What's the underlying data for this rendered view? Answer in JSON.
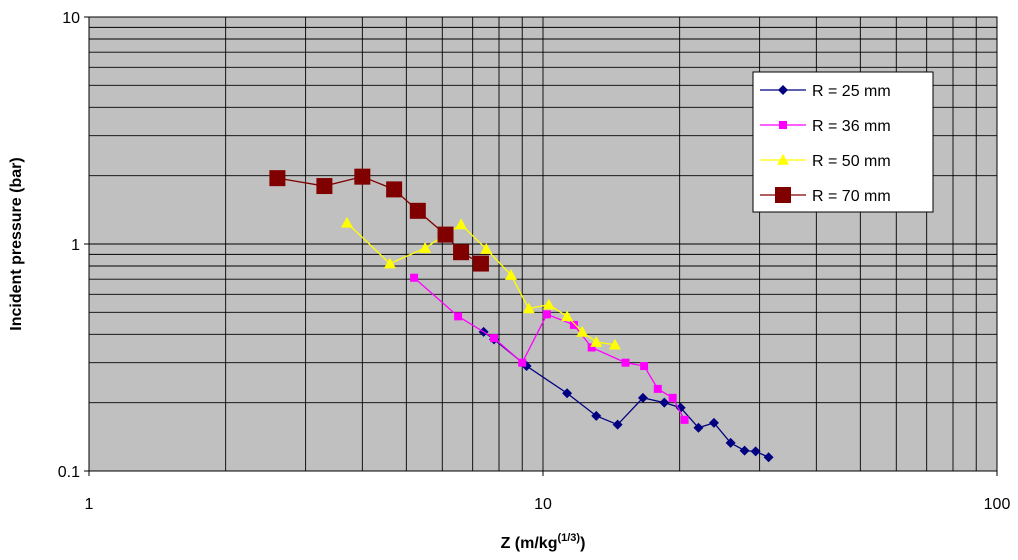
{
  "chart_data": {
    "type": "scatter",
    "title": "",
    "xlabel": "Z (m/kg",
    "xlabel_sup": "(1/3)",
    "xlabel_suffix": ")",
    "ylabel": "Incident pressure (bar)",
    "x_scale": "log",
    "y_scale": "log",
    "xlim": [
      1,
      100
    ],
    "ylim": [
      0.1,
      10
    ],
    "x_ticks": [
      {
        "value": 1,
        "label": "1"
      },
      {
        "value": 10,
        "label": "10"
      },
      {
        "value": 100,
        "label": "100"
      }
    ],
    "y_ticks": [
      {
        "value": 0.1,
        "label": "0.1"
      },
      {
        "value": 1,
        "label": "1"
      },
      {
        "value": 10,
        "label": "10"
      }
    ],
    "grid": true,
    "legend_position": "top-right",
    "plot_background": "#c0c0c0",
    "series": [
      {
        "name": "R = 25 mm",
        "color": "#000080",
        "marker": "diamond",
        "points": [
          [
            7.4,
            0.41
          ],
          [
            7.8,
            0.38
          ],
          [
            9.2,
            0.29
          ],
          [
            11.3,
            0.22
          ],
          [
            13.1,
            0.175
          ],
          [
            14.6,
            0.16
          ],
          [
            16.6,
            0.21
          ],
          [
            18.5,
            0.2
          ],
          [
            20.1,
            0.19
          ],
          [
            22.0,
            0.155
          ],
          [
            23.8,
            0.163
          ],
          [
            25.9,
            0.133
          ],
          [
            27.8,
            0.123
          ],
          [
            29.4,
            0.122
          ],
          [
            31.4,
            0.115
          ]
        ]
      },
      {
        "name": "R = 36 mm",
        "color": "#ff00ff",
        "marker": "square",
        "points": [
          [
            5.2,
            0.71
          ],
          [
            6.5,
            0.48
          ],
          [
            7.8,
            0.385
          ],
          [
            9.0,
            0.3
          ],
          [
            10.2,
            0.49
          ],
          [
            11.7,
            0.44
          ],
          [
            12.8,
            0.35
          ],
          [
            15.2,
            0.3
          ],
          [
            16.7,
            0.29
          ],
          [
            17.9,
            0.23
          ],
          [
            19.3,
            0.21
          ],
          [
            20.5,
            0.168
          ]
        ]
      },
      {
        "name": "R = 50 mm",
        "color": "#ffff00",
        "marker": "triangle",
        "points": [
          [
            3.7,
            1.24
          ],
          [
            4.6,
            0.82
          ],
          [
            5.5,
            0.96
          ],
          [
            6.6,
            1.22
          ],
          [
            7.5,
            0.95
          ],
          [
            8.5,
            0.73
          ],
          [
            9.3,
            0.52
          ],
          [
            10.3,
            0.54
          ],
          [
            11.3,
            0.48
          ],
          [
            12.2,
            0.41
          ],
          [
            13.1,
            0.37
          ],
          [
            14.4,
            0.36
          ]
        ]
      },
      {
        "name": "R = 70 mm",
        "color": "#800000",
        "marker": "square",
        "points": [
          [
            2.6,
            1.95
          ],
          [
            3.3,
            1.8
          ],
          [
            4.0,
            1.98
          ],
          [
            4.7,
            1.74
          ],
          [
            5.3,
            1.4
          ],
          [
            6.1,
            1.1
          ],
          [
            6.6,
            0.92
          ],
          [
            7.3,
            0.82
          ]
        ]
      }
    ]
  }
}
